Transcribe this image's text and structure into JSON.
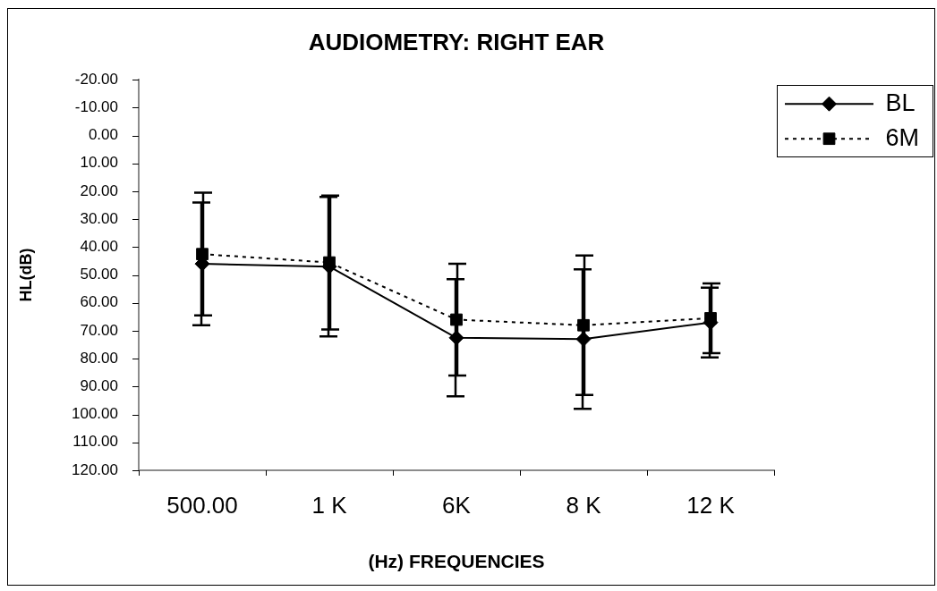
{
  "chart_data": {
    "type": "line",
    "title": "AUDIOMETRY: RIGHT EAR",
    "xlabel": "(Hz) FREQUENCIES",
    "ylabel": "HL(dB)",
    "categories": [
      "500.00",
      "1 K",
      "6K",
      "8 K",
      "12 K"
    ],
    "series": [
      {
        "name": "BL",
        "color": "#000000",
        "values": [
          46,
          47,
          72.5,
          73,
          67
        ],
        "errors": [
          22,
          25,
          21,
          25,
          12.5
        ],
        "marker": "diamond",
        "line_style": "solid"
      },
      {
        "name": "6M",
        "color": "#000000",
        "values": [
          42.5,
          45.5,
          66,
          68,
          65.5
        ],
        "errors": [
          22,
          24,
          20,
          25,
          12.5
        ],
        "marker": "square",
        "line_style": "dotted"
      }
    ],
    "ylim": [
      120,
      -20
    ],
    "yticks": [
      {
        "value": -20,
        "label": "-20.00"
      },
      {
        "value": -10,
        "label": "-10.00"
      },
      {
        "value": 0,
        "label": "0.00"
      },
      {
        "value": 10,
        "label": "10.00"
      },
      {
        "value": 20,
        "label": "20.00"
      },
      {
        "value": 30,
        "label": "30.00"
      },
      {
        "value": 40,
        "label": "40.00"
      },
      {
        "value": 50,
        "label": "50.00"
      },
      {
        "value": 60,
        "label": "60.00"
      },
      {
        "value": 70,
        "label": "70.00"
      },
      {
        "value": 80,
        "label": "80.00"
      },
      {
        "value": 90,
        "label": "90.00"
      },
      {
        "value": 100,
        "label": "100.00"
      },
      {
        "value": 110,
        "label": "110.00"
      },
      {
        "value": 120,
        "label": "120.00"
      }
    ],
    "legend": "top right"
  }
}
